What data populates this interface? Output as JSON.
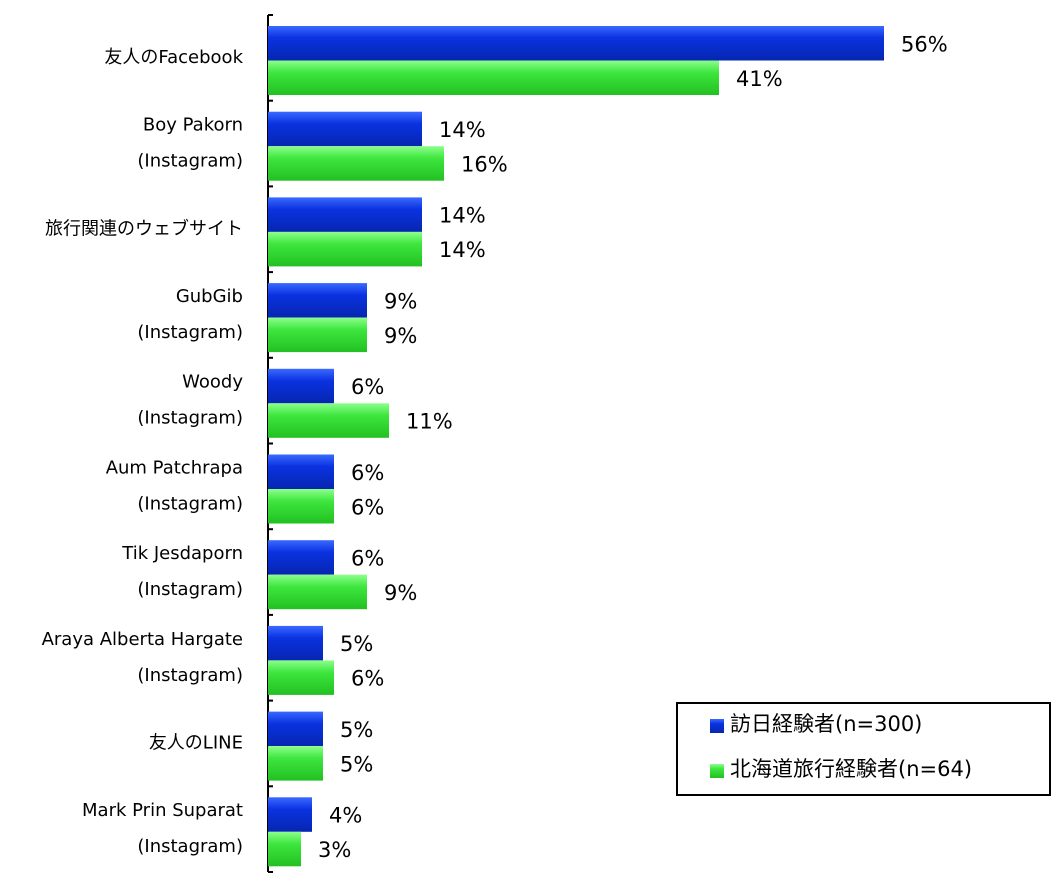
{
  "chart_data": {
    "type": "bar",
    "orientation": "horizontal",
    "categories": [
      [
        "友人のFacebook"
      ],
      [
        "Boy Pakorn",
        "(Instagram)"
      ],
      [
        "旅行関連のウェブサイト"
      ],
      [
        "GubGib",
        "(Instagram)"
      ],
      [
        "Woody",
        "(Instagram)"
      ],
      [
        "Aum Patchrapa",
        "(Instagram)"
      ],
      [
        "Tik Jesdaporn",
        "(Instagram)"
      ],
      [
        "Araya Alberta Hargate",
        "(Instagram)"
      ],
      [
        "友人のLINE"
      ],
      [
        "Mark Prin Suparat",
        "(Instagram)"
      ]
    ],
    "series": [
      {
        "name": "訪日経験者(n=300)",
        "color": "#0a32e0",
        "values": [
          56,
          14,
          14,
          9,
          6,
          6,
          6,
          5,
          5,
          4
        ],
        "value_labels": [
          "56%",
          "14%",
          "14%",
          "9%",
          "6%",
          "6%",
          "6%",
          "5%",
          "5%",
          "4%"
        ]
      },
      {
        "name": "北海道旅行経験者(n=64)",
        "color": "#3ee63e",
        "values": [
          41,
          16,
          14,
          9,
          11,
          6,
          9,
          6,
          5,
          3
        ],
        "value_labels": [
          "41%",
          "16%",
          "14%",
          "9%",
          "11%",
          "6%",
          "9%",
          "6%",
          "5%",
          "3%"
        ]
      }
    ],
    "xlim": [
      0,
      72
    ],
    "legend": "bottom-right"
  }
}
